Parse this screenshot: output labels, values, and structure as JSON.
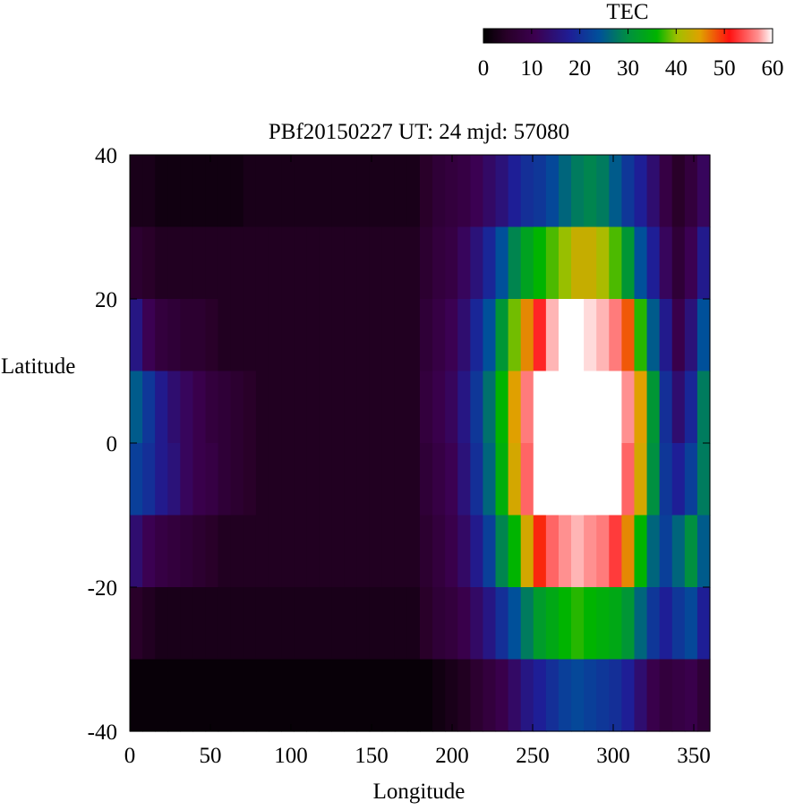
{
  "chart_data": {
    "type": "heatmap",
    "title": "PBf20150227  UT: 24  mjd: 57080",
    "xlabel": "Longitude",
    "ylabel": "Latitude",
    "xlim": [
      0,
      360
    ],
    "ylim": [
      -40,
      40
    ],
    "x_ticks": [
      0,
      50,
      100,
      150,
      200,
      250,
      300,
      350
    ],
    "y_ticks": [
      -40,
      -20,
      0,
      20,
      40
    ],
    "grid": false,
    "colorbar": {
      "label": "TEC",
      "range": [
        0,
        60
      ],
      "ticks": [
        0,
        10,
        20,
        30,
        40,
        50,
        60
      ],
      "placement": "top-right",
      "palette": {
        "stops": [
          0,
          0.08,
          0.18,
          0.3,
          0.4,
          0.5,
          0.6,
          0.67,
          0.75,
          0.85,
          0.95,
          1
        ],
        "colors": [
          "#000000",
          "#280028",
          "#3c0050",
          "#1e1e96",
          "#00509a",
          "#009040",
          "#00b400",
          "#a0c000",
          "#e0a000",
          "#ff1010",
          "#ff9090",
          "#ffffff"
        ]
      }
    },
    "z": [
      [
        3,
        3,
        2,
        2,
        2,
        2,
        2,
        2,
        2,
        3,
        3,
        3,
        3,
        3,
        3,
        3,
        3,
        3,
        3,
        3,
        3,
        3,
        3,
        5,
        7,
        8,
        9,
        11,
        13,
        15,
        18,
        20,
        21,
        23,
        26,
        28,
        29,
        28,
        25,
        21,
        18,
        14,
        9,
        5,
        8,
        12
      ],
      [
        6,
        5,
        4,
        4,
        4,
        4,
        4,
        4,
        4,
        4,
        4,
        4,
        4,
        4,
        4,
        4,
        4,
        4,
        4,
        4,
        4,
        4,
        4,
        6,
        8,
        9,
        12,
        15,
        19,
        24,
        29,
        33,
        36,
        38,
        40,
        43,
        43,
        41,
        38,
        31,
        24,
        18,
        12,
        7,
        11,
        17
      ],
      [
        16,
        11,
        8,
        7,
        6,
        6,
        5,
        4,
        4,
        4,
        4,
        4,
        4,
        4,
        4,
        4,
        4,
        4,
        4,
        4,
        4,
        4,
        4,
        7,
        9,
        11,
        14,
        19,
        24,
        31,
        39,
        46,
        52,
        58,
        60,
        60,
        59,
        58,
        56,
        48,
        37,
        25,
        17,
        10,
        15,
        24
      ],
      [
        25,
        21,
        17,
        14,
        12,
        10,
        8,
        7,
        6,
        5,
        4,
        4,
        4,
        4,
        4,
        4,
        4,
        4,
        4,
        4,
        4,
        4,
        4,
        8,
        10,
        12,
        16,
        21,
        27,
        36,
        45,
        56,
        60,
        60,
        60,
        60,
        60,
        60,
        60,
        57,
        45,
        31,
        20,
        14,
        19,
        28
      ],
      [
        22,
        20,
        17,
        15,
        12,
        10,
        9,
        7,
        6,
        5,
        4,
        4,
        4,
        4,
        4,
        4,
        4,
        4,
        4,
        4,
        4,
        4,
        4,
        7,
        9,
        11,
        15,
        20,
        26,
        35,
        44,
        55,
        60,
        60,
        60,
        60,
        60,
        60,
        60,
        55,
        44,
        30,
        21,
        18,
        22,
        28
      ],
      [
        14,
        11,
        9,
        8,
        7,
        6,
        5,
        4,
        4,
        4,
        4,
        4,
        4,
        4,
        4,
        4,
        4,
        4,
        4,
        4,
        4,
        4,
        4,
        6,
        8,
        10,
        13,
        17,
        22,
        29,
        36,
        44,
        50,
        55,
        57,
        58,
        57,
        56,
        53,
        46,
        36,
        26,
        22,
        26,
        30,
        25
      ],
      [
        5,
        4,
        3,
        3,
        3,
        3,
        3,
        3,
        3,
        3,
        3,
        3,
        3,
        3,
        3,
        3,
        3,
        3,
        3,
        3,
        3,
        3,
        3,
        5,
        7,
        8,
        10,
        13,
        16,
        20,
        24,
        28,
        32,
        34,
        36,
        37,
        36,
        35,
        34,
        31,
        26,
        21,
        18,
        21,
        23,
        18
      ],
      [
        1,
        1,
        1,
        1,
        1,
        1,
        1,
        1,
        1,
        1,
        1,
        1,
        1,
        1,
        1,
        1,
        1,
        1,
        1,
        1,
        1,
        1,
        1,
        1,
        2,
        3,
        4,
        6,
        8,
        10,
        13,
        16,
        18,
        20,
        22,
        23,
        22,
        21,
        20,
        18,
        14,
        10,
        8,
        9,
        10,
        7
      ]
    ]
  }
}
